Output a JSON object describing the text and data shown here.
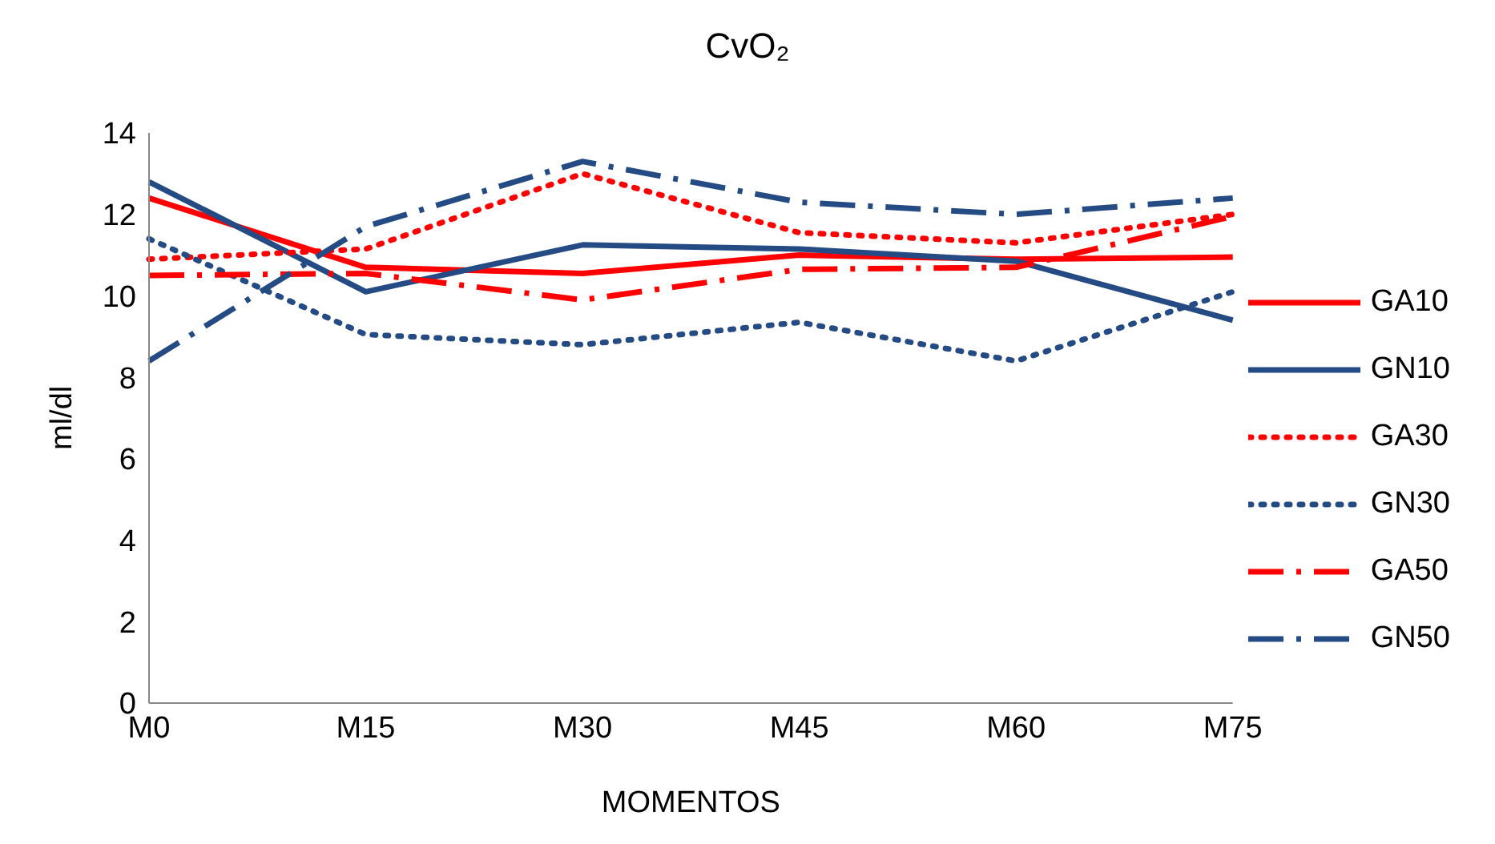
{
  "chart_data": {
    "type": "line",
    "title": "CvO₂",
    "xlabel": "MOMENTOS",
    "ylabel": "ml/dl",
    "categories": [
      "M0",
      "M15",
      "M30",
      "M45",
      "M60",
      "M75"
    ],
    "ylim": [
      0,
      14
    ],
    "yticks": [
      0,
      2,
      4,
      6,
      8,
      10,
      12,
      14
    ],
    "grid": false,
    "legend": "right",
    "marker": "none",
    "series": [
      {
        "name": "GA10",
        "color": "#ff0000",
        "line_style": "solid",
        "values": [
          12.4,
          10.7,
          10.55,
          11.0,
          10.9,
          10.95
        ]
      },
      {
        "name": "GN10",
        "color": "#254b84",
        "line_style": "solid",
        "values": [
          12.8,
          10.1,
          11.25,
          11.15,
          10.85,
          9.4
        ]
      },
      {
        "name": "GA30",
        "color": "#ff0000",
        "line_style": "dotted",
        "values": [
          10.9,
          11.15,
          13.0,
          11.55,
          11.3,
          12.0
        ]
      },
      {
        "name": "GN30",
        "color": "#254b84",
        "line_style": "dotted",
        "values": [
          11.4,
          9.05,
          8.8,
          9.35,
          8.4,
          10.1
        ]
      },
      {
        "name": "GA50",
        "color": "#ff0000",
        "line_style": "dashed",
        "values": [
          10.5,
          10.55,
          9.9,
          10.65,
          10.7,
          11.95
        ]
      },
      {
        "name": "GN50",
        "color": "#254b84",
        "line_style": "dashed",
        "values": [
          8.4,
          11.7,
          13.3,
          12.3,
          12.0,
          12.4
        ]
      }
    ]
  }
}
